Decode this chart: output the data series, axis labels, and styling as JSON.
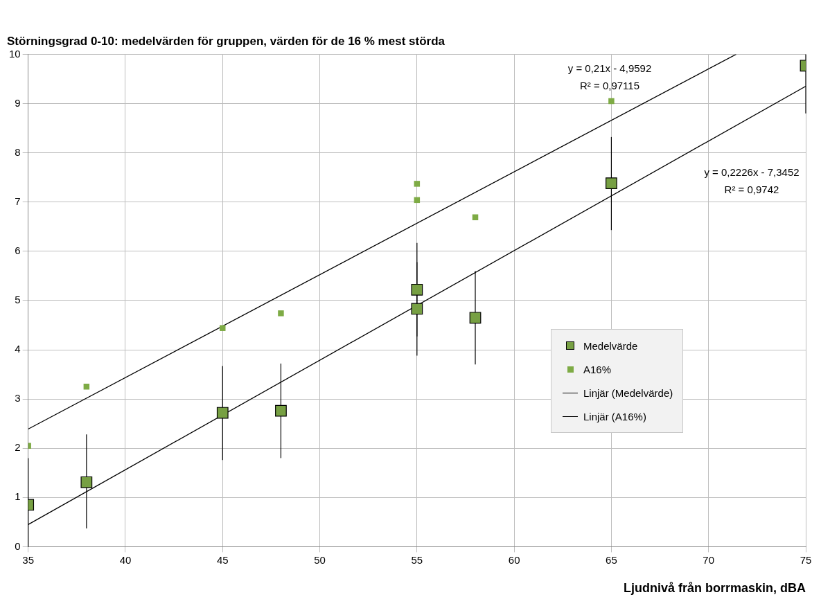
{
  "chart_data": {
    "type": "scatter",
    "title": "Störningsgrad 0-10: medelvärden för gruppen, värden för de 16 % mest störda",
    "xlabel": "Ljudnivå från borrmaskin, dBA",
    "x": [
      35,
      38,
      45,
      48,
      55,
      55,
      58,
      65,
      75
    ],
    "series": [
      {
        "name": "Medelvärde",
        "type": "scatter",
        "marker": "square",
        "color": "#77a043",
        "values": [
          0.85,
          1.31,
          2.72,
          2.76,
          5.22,
          4.83,
          4.65,
          7.38,
          9.77
        ],
        "errors": [
          [
            0,
            1.8
          ],
          [
            0.37,
            2.28
          ],
          [
            1.76,
            3.67
          ],
          [
            1.8,
            3.72
          ],
          [
            4.27,
            6.17
          ],
          [
            3.88,
            5.78
          ],
          [
            3.7,
            5.6
          ],
          [
            6.43,
            8.32
          ],
          [
            8.8,
            10
          ]
        ]
      },
      {
        "name": "A16%",
        "type": "scatter",
        "marker": "square",
        "color": "#7eab45",
        "x": [
          35,
          38,
          45,
          48,
          55,
          55,
          58,
          65
        ],
        "values": [
          2.05,
          3.25,
          4.44,
          4.74,
          7.37,
          7.04,
          6.69,
          9.05
        ]
      },
      {
        "name": "Linjär (Medelvärde)",
        "type": "line",
        "marker": "none",
        "color": "#000000",
        "x": [
          35,
          75
        ],
        "values": [
          0.45,
          9.35
        ]
      },
      {
        "name": "Linjär (A16%)",
        "type": "line",
        "marker": "none",
        "color": "#000000",
        "x": [
          35,
          71.42
        ],
        "values": [
          2.39,
          10
        ]
      }
    ],
    "annotations": [
      "y = 0,21x - 4,9592",
      "R² = 0,97115",
      "y = 0,2226x - 7,3452",
      "R² = 0,9742"
    ],
    "xlim": [
      35,
      75
    ],
    "xticks": [
      35,
      40,
      45,
      50,
      55,
      60,
      65,
      70,
      75
    ],
    "ylim": [
      0,
      10
    ],
    "yticks": [
      0,
      1,
      2,
      3,
      4,
      5,
      6,
      7,
      8,
      9,
      10
    ],
    "grid": true,
    "legend": "right"
  }
}
